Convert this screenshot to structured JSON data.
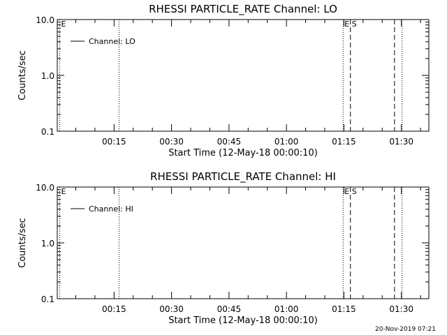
{
  "chart_data": [
    {
      "type": "line",
      "title": "RHESSI PARTICLE_RATE Channel: LO",
      "xlabel": "Start Time (12-May-18 00:00:10)",
      "ylabel": "Counts/sec",
      "y_scale": "log",
      "ylim": [
        0.1,
        10.0
      ],
      "yticks": [
        "10.0",
        "1.0",
        "0.1"
      ],
      "xtick_labels": [
        "00:15",
        "00:30",
        "00:45",
        "01:00",
        "01:15",
        "01:30"
      ],
      "xlim_minutes": [
        0.17,
        97.17
      ],
      "xtick_minutes": [
        15,
        30,
        45,
        60,
        75,
        90
      ],
      "legend": {
        "placement": "top-left",
        "entry": "Channel: LO"
      },
      "series": [
        {
          "name": "Channel: LO",
          "values": []
        }
      ],
      "markers": [
        {
          "minute": 0.8,
          "label": "E",
          "style": "dotted"
        },
        {
          "minute": 16.3,
          "label": "",
          "style": "dotted"
        },
        {
          "minute": 74.8,
          "label": "E",
          "style": "dotted"
        },
        {
          "minute": 76.7,
          "label": "S",
          "style": "dashed"
        },
        {
          "minute": 88.2,
          "label": "",
          "style": "dashed"
        },
        {
          "minute": 90.2,
          "label": "",
          "style": "dotted"
        }
      ],
      "grid": false
    },
    {
      "type": "line",
      "title": "RHESSI PARTICLE_RATE Channel: HI",
      "xlabel": "Start Time (12-May-18 00:00:10)",
      "ylabel": "Counts/sec",
      "y_scale": "log",
      "ylim": [
        0.1,
        10.0
      ],
      "yticks": [
        "10.0",
        "1.0",
        "0.1"
      ],
      "xtick_labels": [
        "00:15",
        "00:30",
        "00:45",
        "01:00",
        "01:15",
        "01:30"
      ],
      "xlim_minutes": [
        0.17,
        97.17
      ],
      "xtick_minutes": [
        15,
        30,
        45,
        60,
        75,
        90
      ],
      "legend": {
        "placement": "top-left",
        "entry": "Channel: HI"
      },
      "series": [
        {
          "name": "Channel: HI",
          "values": []
        }
      ],
      "markers": [
        {
          "minute": 0.8,
          "label": "E",
          "style": "dotted"
        },
        {
          "minute": 16.3,
          "label": "",
          "style": "dotted"
        },
        {
          "minute": 74.8,
          "label": "E",
          "style": "dotted"
        },
        {
          "minute": 76.7,
          "label": "S",
          "style": "dashed"
        },
        {
          "minute": 88.2,
          "label": "",
          "style": "dashed"
        },
        {
          "minute": 90.2,
          "label": "",
          "style": "dotted"
        }
      ],
      "grid": false
    }
  ],
  "footer": {
    "timestamp": "20-Nov-2019 07:21"
  },
  "colors": {
    "foreground": "#000000",
    "background": "#ffffff"
  }
}
